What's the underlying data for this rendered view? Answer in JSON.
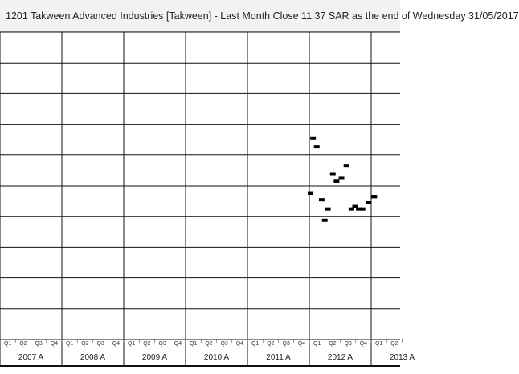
{
  "title": "1201  Takween Advanced Industries [Takween] - Last Month Close 11.37 SAR as the end of Wednesday 31/05/2017",
  "chart_data": {
    "type": "scatter",
    "title": "1201  Takween Advanced Industries [Takween] - Last Month Close 11.37 SAR as the end of Wednesday 31/05/2017",
    "years": [
      "2007 A",
      "2008 A",
      "2009 A",
      "2010 A",
      "2011 A",
      "2012 A",
      "2013 A"
    ],
    "quarter_labels": [
      "Q1",
      "Q2",
      "Q3",
      "Q4"
    ],
    "grid": true,
    "ylim": [
      0,
      10
    ],
    "points": [
      {
        "x": 2012.06,
        "y": 6.55
      },
      {
        "x": 2012.12,
        "y": 6.28
      },
      {
        "x": 2012.02,
        "y": 4.75
      },
      {
        "x": 2012.2,
        "y": 4.55
      },
      {
        "x": 2012.3,
        "y": 4.25
      },
      {
        "x": 2012.25,
        "y": 3.88
      },
      {
        "x": 2012.38,
        "y": 5.38
      },
      {
        "x": 2012.44,
        "y": 5.15
      },
      {
        "x": 2012.52,
        "y": 5.25
      },
      {
        "x": 2012.6,
        "y": 5.65
      },
      {
        "x": 2012.68,
        "y": 4.25
      },
      {
        "x": 2012.74,
        "y": 4.33
      },
      {
        "x": 2012.8,
        "y": 4.25
      },
      {
        "x": 2012.86,
        "y": 4.25
      },
      {
        "x": 2012.96,
        "y": 4.45
      },
      {
        "x": 2013.05,
        "y": 4.65
      }
    ]
  }
}
